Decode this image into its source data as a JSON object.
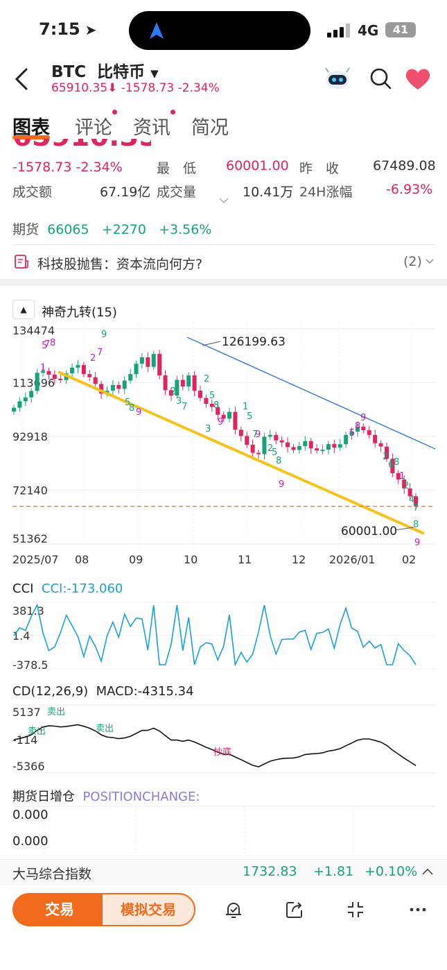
{
  "status": {
    "time": "7:15",
    "network": "4G",
    "battery": "41"
  },
  "header": {
    "symbol": "BTC",
    "name": "比特币",
    "price": "65910.35",
    "arrow": "⬇",
    "change": "-1578.73",
    "change_pct": "-2.34%"
  },
  "tabs": [
    {
      "label": "图表"
    },
    {
      "label": "评论"
    },
    {
      "label": "资讯"
    },
    {
      "label": "简况"
    }
  ],
  "quote": {
    "big_price_partial": "65910.35",
    "change": "-1578.73",
    "change_pct": "-2.34%",
    "low_label": "最　低",
    "low_value": "60001.00",
    "prev_label": "昨　收",
    "prev_value": "67489.08",
    "turnover_label": "成交额",
    "turnover_value": "67.19亿",
    "volume_label": "成交量",
    "volume_value": "10.41万",
    "h24_label": "24H涨幅",
    "h24_value": "-6.93%"
  },
  "futures": {
    "label": "期货",
    "price": "66065",
    "change": "+2270",
    "pct": "+3.56%"
  },
  "news": {
    "text": "科技股抛售：资本流向何方?",
    "count": "(2)"
  },
  "indicator": {
    "name": "神奇九转(15)"
  },
  "chart_data": {
    "type": "candlestick",
    "y_ticks": [
      "134474",
      "113696",
      "92918",
      "72140",
      "51362"
    ],
    "x_ticks": [
      "2025/07",
      "08",
      "09",
      "10",
      "11",
      "12",
      "2026/01",
      "02"
    ],
    "high_label": "126199.63",
    "low_label": "60001.00",
    "reference_price": 65910.35,
    "close_series": [
      104000,
      106500,
      108000,
      110500,
      117500,
      118200,
      116800,
      115200,
      114700,
      117300,
      119500,
      120500,
      117000,
      115800,
      113200,
      109500,
      110600,
      112800,
      111300,
      114500,
      117000,
      121000,
      123500,
      119800,
      124800,
      116500,
      110800,
      108700,
      114800,
      112200,
      116500,
      110600,
      107800,
      105500,
      104300,
      101300,
      99800,
      102400,
      95500,
      93100,
      89700,
      86600,
      86100,
      92800,
      93500,
      91400,
      90600,
      88800,
      87700,
      89200,
      91100,
      88300,
      87500,
      87800,
      90000,
      88600,
      89900,
      93500,
      94800,
      96700,
      95300,
      93500,
      90300,
      89000,
      84300,
      78700,
      76300,
      72800,
      69800,
      65900
    ],
    "colors": {
      "up": "#17a37a",
      "down": "#e0245e",
      "channel_top": "#3b7fd6",
      "channel_bottom": "#f6c21c",
      "ref_line": "#f26a1b"
    }
  },
  "cci": {
    "label": "CCI",
    "value_label": "CCI:-173.060",
    "ticks": [
      "381.3",
      "1.4",
      "-378.5"
    ]
  },
  "macd": {
    "label": "CD(12,26,9)",
    "value_label": "MACD:-4315.34",
    "ticks": [
      "5137",
      "-114",
      "-5366"
    ],
    "signals": [
      "卖出",
      "卖出",
      "卖出",
      "抄底"
    ]
  },
  "position": {
    "label": "期货日增仓",
    "value_label": "POSITIONCHANGE:",
    "ticks": [
      "0.000",
      "0.000"
    ]
  },
  "index_bar": {
    "name": "大马综合指数",
    "value": "1732.83",
    "change": "+1.81",
    "pct": "+0.10%"
  },
  "bottom": {
    "trade": "交易",
    "sim_trade": "模拟交易"
  }
}
